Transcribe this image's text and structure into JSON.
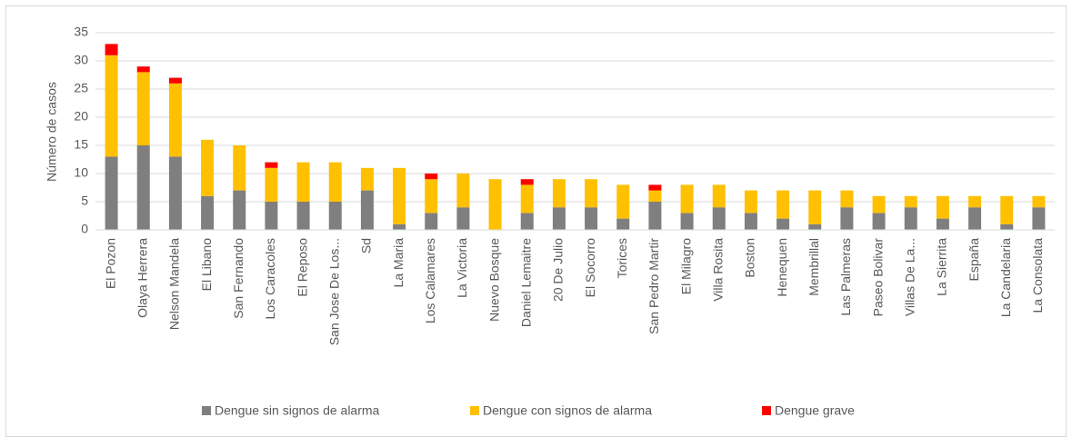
{
  "chart_data": {
    "type": "stacked_bar",
    "y_label": "Número de casos",
    "categories": [
      "El Pozon",
      "Olaya Herrera",
      "Nelson Mandela",
      "El Libano",
      "San Fernando",
      "Los Caracoles",
      "El Reposo",
      "San Jose De Los...",
      "Sd",
      "La Maria",
      "Los Calamares",
      "La Victoria",
      "Nuevo Bosque",
      "Daniel Lemaitre",
      "20 De Julio",
      "El Socorro",
      "Torices",
      "San Pedro Martir",
      "El Milagro",
      "Villa Rosita",
      "Boston",
      "Henequen",
      "Membrillal",
      "Las Palmeras",
      "Paseo Bolivar",
      "Villas De La...",
      "La Sierrita",
      "España",
      "La Candelaria",
      "La Consolata"
    ],
    "series": [
      {
        "name": "Dengue sin signos de alarma",
        "color": "#7f7f7f",
        "values": [
          13,
          15,
          13,
          6,
          7,
          5,
          5,
          5,
          7,
          1,
          3,
          4,
          0,
          3,
          4,
          4,
          2,
          5,
          3,
          4,
          3,
          2,
          1,
          4,
          3,
          4,
          2,
          4,
          1,
          4
        ]
      },
      {
        "name": "Dengue con signos de alarma",
        "color": "#ffc000",
        "values": [
          18,
          13,
          13,
          10,
          8,
          6,
          7,
          7,
          4,
          10,
          6,
          6,
          9,
          5,
          5,
          5,
          6,
          2,
          5,
          4,
          4,
          5,
          6,
          3,
          3,
          2,
          4,
          2,
          5,
          2
        ]
      },
      {
        "name": "Dengue grave",
        "color": "#ff0000",
        "values": [
          2,
          1,
          1,
          0,
          0,
          1,
          0,
          0,
          0,
          0,
          1,
          0,
          0,
          1,
          0,
          0,
          0,
          1,
          0,
          0,
          0,
          0,
          0,
          0,
          0,
          0,
          0,
          0,
          0,
          0
        ]
      }
    ],
    "ylim": [
      0,
      35
    ],
    "yticks": [
      0,
      5,
      10,
      15,
      20,
      25,
      30,
      35
    ],
    "grid": true,
    "legend": "bottom"
  }
}
